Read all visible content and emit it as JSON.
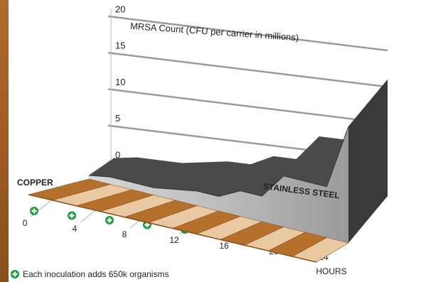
{
  "chart_data": {
    "type": "area3d",
    "y_label": "MRSA Count (CFU per carrier in millions)",
    "x_label": "HOURS",
    "x": [
      0,
      2,
      4,
      6,
      8,
      10,
      12,
      14,
      16,
      18,
      20,
      22,
      24
    ],
    "xlim": [
      0,
      24
    ],
    "xticks": [
      0,
      4,
      8,
      12,
      16,
      20,
      24
    ],
    "ylim": [
      0,
      20
    ],
    "yticks": [
      0,
      5,
      10,
      15,
      20
    ],
    "grid": true,
    "series": [
      {
        "name": "COPPER",
        "color": "#b5702c",
        "values": [
          0,
          0,
          0,
          0,
          0,
          0,
          0,
          0,
          0,
          0,
          0,
          0,
          0
        ]
      },
      {
        "name": "STAINLESS STEEL",
        "color": "#4a4a4a",
        "values": [
          0.5,
          1,
          1,
          1,
          1.5,
          2,
          2,
          3.5,
          3.5,
          7,
          7,
          7,
          16
        ]
      }
    ],
    "footnote": "Each inoculation adds 650k organisms"
  }
}
